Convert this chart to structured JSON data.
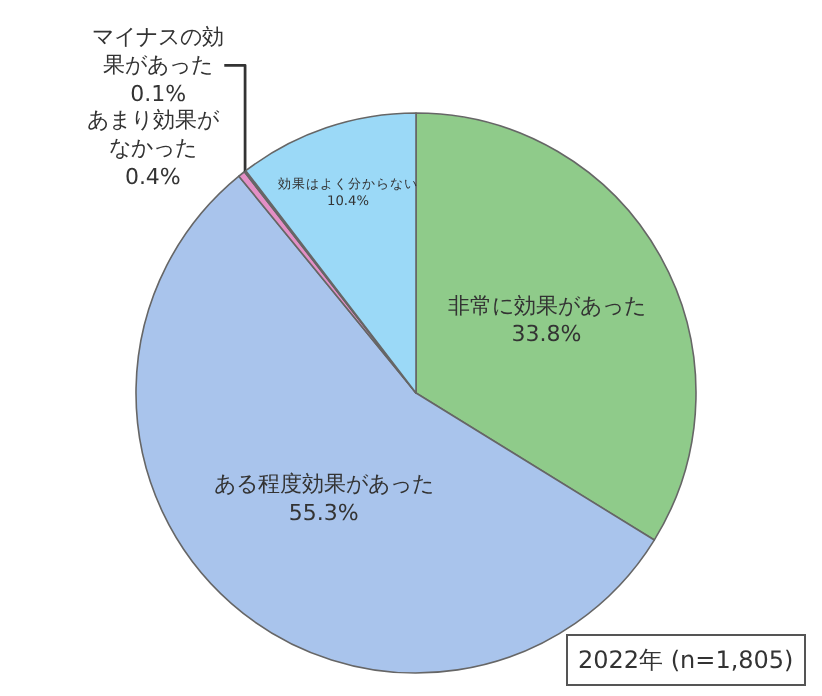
{
  "chart_data": {
    "type": "pie",
    "categories": [
      "非常に効果があった",
      "ある程度効果があった",
      "あまり効果がなかった",
      "マイナスの効果があった",
      "効果はよく分からない"
    ],
    "values": [
      33.8,
      55.3,
      0.4,
      0.1,
      10.4
    ],
    "value_labels": [
      "33.8%",
      "55.3%",
      "0.4%",
      "0.1%",
      "10.4%"
    ],
    "colors": [
      "#8fcb8a",
      "#a9c4ec",
      "#e48fc6",
      "#7a4a8c",
      "#9bd9f7"
    ],
    "legend": false,
    "annotations": [
      "2022年 (n=1,805)"
    ]
  }
}
